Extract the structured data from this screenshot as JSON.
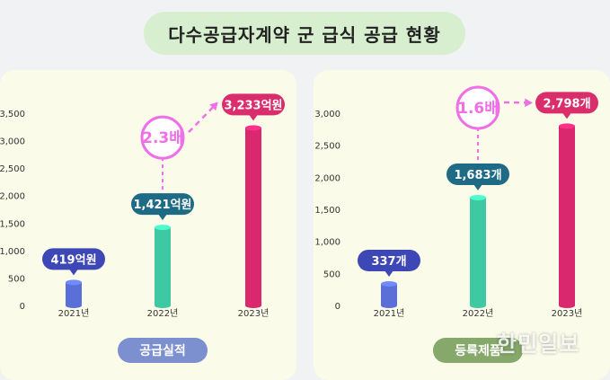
{
  "title": "다수공급자계약 군 급식 공급 현황",
  "watermark": "한민일보",
  "colors": {
    "bar_2021": "#5a6fd8",
    "bar_2022": "#3ec9a3",
    "bar_2023": "#d9286e",
    "label_2021": "#3d47b6",
    "label_2022": "#1f6b86",
    "label_2023": "#d92e6b",
    "growth": "#ee6fe6"
  },
  "chart_data": [
    {
      "type": "bar",
      "name": "supply-performance",
      "categories": [
        "2021년",
        "2022년",
        "2023년"
      ],
      "values": [
        419,
        1421,
        3233
      ],
      "value_labels": [
        "419억원",
        "1,421억원",
        "3,233억원"
      ],
      "yticks": [
        0,
        500,
        1000,
        1500,
        2000,
        2500,
        3000,
        3500
      ],
      "ytick_labels": [
        "0",
        "500",
        "1,000",
        "1,500",
        "2,000",
        "2,500",
        "3,000",
        "3,500"
      ],
      "ylim": [
        0,
        3500
      ],
      "growth_label": "2.3배",
      "footer": "공급실적"
    },
    {
      "type": "bar",
      "name": "registered-products",
      "categories": [
        "2021년",
        "2022년",
        "2023년"
      ],
      "values": [
        337,
        1683,
        2798
      ],
      "value_labels": [
        "337개",
        "1,683개",
        "2,798개"
      ],
      "yticks": [
        0,
        500,
        1000,
        1500,
        2000,
        2500,
        3000
      ],
      "ytick_labels": [
        "0",
        "500",
        "1,000",
        "1,500",
        "2,000",
        "2,500",
        "3,000"
      ],
      "ylim": [
        0,
        3000
      ],
      "growth_label": "1.6배",
      "footer": "등록제품"
    }
  ]
}
